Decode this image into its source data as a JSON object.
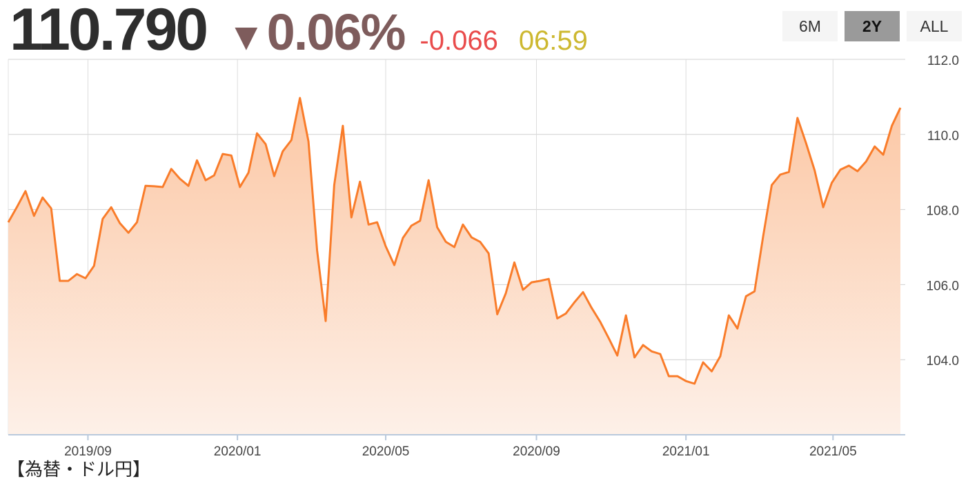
{
  "header": {
    "price": "110.790",
    "change_arrow": "▼",
    "change_pct": "0.06%",
    "change_abs": "-0.066",
    "time": "06:59"
  },
  "range_buttons": [
    {
      "label": "6M",
      "active": false
    },
    {
      "label": "2Y",
      "active": true
    },
    {
      "label": "ALL",
      "active": false
    }
  ],
  "footer_text": "【為替・ドル円】",
  "colors": {
    "line": "#f97c2a",
    "fill_top": "#fcc7a4",
    "fill_bottom": "#fdf0e8",
    "price": "#2e2e2e",
    "change": "#7e5c5c",
    "diff": "#e94b4b",
    "time": "#cdb830"
  },
  "chart_data": {
    "type": "area",
    "xlabel": "",
    "ylabel": "",
    "ylim": [
      102.0,
      112.0
    ],
    "yticks": [
      "104.0",
      "106.0",
      "108.0",
      "110.0",
      "112.0"
    ],
    "xticks": [
      "2019/09",
      "2020/01",
      "2020/05",
      "2020/09",
      "2021/01",
      "2021/05"
    ],
    "grid": true,
    "x": [
      "2019-06-28",
      "2019-07-05",
      "2019-07-12",
      "2019-07-19",
      "2019-07-26",
      "2019-08-02",
      "2019-08-09",
      "2019-08-16",
      "2019-08-23",
      "2019-08-30",
      "2019-09-06",
      "2019-09-13",
      "2019-09-20",
      "2019-09-27",
      "2019-10-04",
      "2019-10-11",
      "2019-10-18",
      "2019-10-25",
      "2019-11-01",
      "2019-11-08",
      "2019-11-15",
      "2019-11-22",
      "2019-11-29",
      "2019-12-06",
      "2019-12-13",
      "2019-12-20",
      "2019-12-27",
      "2020-01-03",
      "2020-01-10",
      "2020-01-17",
      "2020-01-24",
      "2020-01-31",
      "2020-02-07",
      "2020-02-14",
      "2020-02-21",
      "2020-02-28",
      "2020-03-06",
      "2020-03-13",
      "2020-03-20",
      "2020-03-27",
      "2020-04-03",
      "2020-04-10",
      "2020-04-17",
      "2020-04-24",
      "2020-05-01",
      "2020-05-08",
      "2020-05-15",
      "2020-05-22",
      "2020-05-29",
      "2020-06-05",
      "2020-06-12",
      "2020-06-19",
      "2020-06-26",
      "2020-07-03",
      "2020-07-10",
      "2020-07-17",
      "2020-07-24",
      "2020-07-31",
      "2020-08-07",
      "2020-08-14",
      "2020-08-21",
      "2020-08-28",
      "2020-09-04",
      "2020-09-11",
      "2020-09-18",
      "2020-09-25",
      "2020-10-02",
      "2020-10-09",
      "2020-10-16",
      "2020-10-23",
      "2020-10-30",
      "2020-11-06",
      "2020-11-13",
      "2020-11-20",
      "2020-11-27",
      "2020-12-04",
      "2020-12-11",
      "2020-12-18",
      "2020-12-25",
      "2021-01-01",
      "2021-01-08",
      "2021-01-15",
      "2021-01-22",
      "2021-01-29",
      "2021-02-05",
      "2021-02-12",
      "2021-02-19",
      "2021-02-26",
      "2021-03-05",
      "2021-03-12",
      "2021-03-19",
      "2021-03-26",
      "2021-04-02",
      "2021-04-09",
      "2021-04-16",
      "2021-04-23",
      "2021-04-30",
      "2021-05-07",
      "2021-05-14",
      "2021-05-21",
      "2021-05-28",
      "2021-06-04",
      "2021-06-11",
      "2021-06-18",
      "2021-06-25"
    ],
    "values": [
      107.66,
      108.06,
      108.49,
      107.83,
      108.32,
      108.03,
      106.1,
      106.1,
      106.28,
      106.17,
      106.5,
      107.75,
      108.06,
      107.64,
      107.38,
      107.66,
      108.63,
      108.62,
      108.6,
      109.08,
      108.82,
      108.63,
      109.31,
      108.78,
      108.91,
      109.48,
      109.44,
      108.6,
      108.98,
      110.03,
      109.74,
      108.89,
      109.55,
      109.85,
      110.97,
      109.81,
      106.91,
      105.03,
      108.65,
      110.23,
      107.79,
      108.74,
      107.6,
      107.66,
      107.02,
      106.52,
      107.24,
      107.57,
      107.7,
      108.78,
      107.53,
      107.14,
      107.0,
      107.6,
      107.26,
      107.14,
      106.83,
      105.21,
      105.77,
      106.59,
      105.86,
      106.06,
      106.1,
      106.15,
      105.1,
      105.23,
      105.53,
      105.8,
      105.38,
      105.01,
      104.57,
      104.11,
      105.18,
      104.06,
      104.39,
      104.22,
      104.15,
      103.56,
      103.56,
      103.43,
      103.36,
      103.93,
      103.69,
      104.09,
      105.18,
      104.83,
      105.69,
      105.82,
      107.29,
      108.65,
      108.93,
      109.0,
      110.44,
      109.77,
      109.04,
      108.06,
      108.71,
      109.06,
      109.17,
      109.02,
      109.28,
      109.68,
      109.46,
      110.23,
      110.71
    ]
  }
}
